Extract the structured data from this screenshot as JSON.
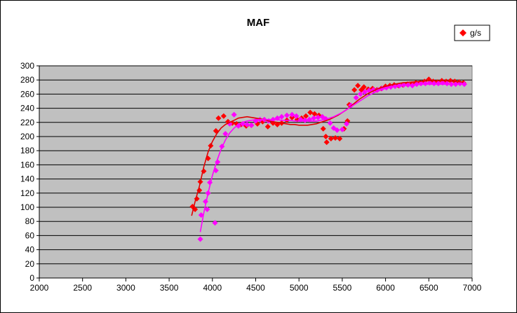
{
  "chart_data": {
    "type": "scatter",
    "title": "MAF",
    "xlabel": "",
    "ylabel": "",
    "xlim": [
      2000,
      7000
    ],
    "ylim": [
      0,
      300
    ],
    "x_ticks": [
      2000,
      2500,
      3000,
      3500,
      4000,
      4500,
      5000,
      5500,
      6000,
      6500,
      7000
    ],
    "y_ticks": [
      0,
      20,
      40,
      60,
      80,
      100,
      120,
      140,
      160,
      180,
      200,
      220,
      240,
      260,
      280,
      300
    ],
    "grid": "horizontal",
    "legend": "top-right",
    "colors": {
      "plot_background": "#c0c0c0",
      "series1": "#ff0000",
      "series2": "#ff00ff",
      "trend1": "#e00000",
      "trend2": "#ff00ff"
    },
    "series": [
      {
        "name": "g/s",
        "color": "#ff0000",
        "marker": "diamond",
        "points": [
          [
            3770,
            101
          ],
          [
            3800,
            97
          ],
          [
            3820,
            112
          ],
          [
            3850,
            124
          ],
          [
            3860,
            136
          ],
          [
            3900,
            151
          ],
          [
            3950,
            169
          ],
          [
            3980,
            187
          ],
          [
            4040,
            208
          ],
          [
            4070,
            226
          ],
          [
            4130,
            229
          ],
          [
            4180,
            221
          ],
          [
            4230,
            219
          ],
          [
            4280,
            218
          ],
          [
            4330,
            217
          ],
          [
            4390,
            215
          ],
          [
            4450,
            216
          ],
          [
            4520,
            218
          ],
          [
            4580,
            221
          ],
          [
            4640,
            214
          ],
          [
            4700,
            219
          ],
          [
            4750,
            217
          ],
          [
            4800,
            219
          ],
          [
            4860,
            223
          ],
          [
            4920,
            227
          ],
          [
            4980,
            224
          ],
          [
            5030,
            226
          ],
          [
            5080,
            229
          ],
          [
            5130,
            234
          ],
          [
            5180,
            232
          ],
          [
            5230,
            230
          ],
          [
            5280,
            211
          ],
          [
            5310,
            200
          ],
          [
            5320,
            192
          ],
          [
            5370,
            197
          ],
          [
            5420,
            198
          ],
          [
            5470,
            197
          ],
          [
            5520,
            211
          ],
          [
            5560,
            222
          ],
          [
            5580,
            245
          ],
          [
            5640,
            266
          ],
          [
            5680,
            272
          ],
          [
            5720,
            266
          ],
          [
            5750,
            270
          ],
          [
            5800,
            267
          ],
          [
            5850,
            268
          ],
          [
            5900,
            266
          ],
          [
            5950,
            268
          ],
          [
            6000,
            271
          ],
          [
            6050,
            272
          ],
          [
            6100,
            273
          ],
          [
            6150,
            272
          ],
          [
            6200,
            273
          ],
          [
            6250,
            274
          ],
          [
            6300,
            274
          ],
          [
            6350,
            276
          ],
          [
            6400,
            276
          ],
          [
            6450,
            278
          ],
          [
            6500,
            281
          ],
          [
            6550,
            278
          ],
          [
            6600,
            277
          ],
          [
            6650,
            279
          ],
          [
            6700,
            278
          ],
          [
            6750,
            279
          ],
          [
            6800,
            278
          ],
          [
            6850,
            277
          ],
          [
            6900,
            276
          ]
        ]
      },
      {
        "name": "",
        "color": "#ff00ff",
        "marker": "diamond",
        "points": [
          [
            3860,
            55
          ],
          [
            3870,
            89
          ],
          [
            3920,
            108
          ],
          [
            3940,
            97
          ],
          [
            3950,
            120
          ],
          [
            3970,
            135
          ],
          [
            4030,
            78
          ],
          [
            4040,
            152
          ],
          [
            4060,
            164
          ],
          [
            4110,
            186
          ],
          [
            4150,
            204
          ],
          [
            4200,
            218
          ],
          [
            4250,
            231
          ],
          [
            4300,
            215
          ],
          [
            4350,
            218
          ],
          [
            4400,
            217
          ],
          [
            4450,
            216
          ],
          [
            4500,
            222
          ],
          [
            4550,
            224
          ],
          [
            4600,
            224
          ],
          [
            4650,
            222
          ],
          [
            4700,
            224
          ],
          [
            4750,
            226
          ],
          [
            4800,
            228
          ],
          [
            4860,
            230
          ],
          [
            4920,
            231
          ],
          [
            4970,
            229
          ],
          [
            5020,
            224
          ],
          [
            5070,
            223
          ],
          [
            5120,
            224
          ],
          [
            5170,
            226
          ],
          [
            5220,
            227
          ],
          [
            5270,
            228
          ],
          [
            5310,
            225
          ],
          [
            5360,
            219
          ],
          [
            5400,
            212
          ],
          [
            5440,
            209
          ],
          [
            5500,
            210
          ],
          [
            5550,
            218
          ],
          [
            5600,
            244
          ],
          [
            5660,
            255
          ],
          [
            5710,
            260
          ],
          [
            5760,
            263
          ],
          [
            5810,
            265
          ],
          [
            5860,
            266
          ],
          [
            5910,
            266
          ],
          [
            5960,
            268
          ],
          [
            6010,
            269
          ],
          [
            6060,
            270
          ],
          [
            6110,
            271
          ],
          [
            6160,
            272
          ],
          [
            6210,
            273
          ],
          [
            6260,
            273
          ],
          [
            6310,
            272
          ],
          [
            6360,
            274
          ],
          [
            6410,
            275
          ],
          [
            6460,
            275
          ],
          [
            6510,
            276
          ],
          [
            6560,
            275
          ],
          [
            6610,
            275
          ],
          [
            6660,
            276
          ],
          [
            6710,
            275
          ],
          [
            6760,
            274
          ],
          [
            6810,
            274
          ],
          [
            6860,
            275
          ],
          [
            6910,
            274
          ]
        ]
      }
    ],
    "trendlines": [
      {
        "color": "#e00000",
        "points": [
          [
            3760,
            88
          ],
          [
            3800,
            108
          ],
          [
            3850,
            130
          ],
          [
            3900,
            157
          ],
          [
            3950,
            178
          ],
          [
            4000,
            193
          ],
          [
            4050,
            204
          ],
          [
            4100,
            212
          ],
          [
            4150,
            217
          ],
          [
            4200,
            220
          ],
          [
            4250,
            223
          ],
          [
            4300,
            226
          ],
          [
            4350,
            227
          ],
          [
            4400,
            228
          ],
          [
            4450,
            227
          ],
          [
            4500,
            226
          ],
          [
            4550,
            225
          ],
          [
            4600,
            224
          ],
          [
            4650,
            222
          ],
          [
            4700,
            221
          ],
          [
            4750,
            220
          ],
          [
            4800,
            219
          ],
          [
            4850,
            218
          ],
          [
            4900,
            217
          ],
          [
            4950,
            217
          ],
          [
            5000,
            216
          ],
          [
            5050,
            216
          ],
          [
            5100,
            216
          ],
          [
            5150,
            217
          ],
          [
            5200,
            218
          ],
          [
            5250,
            220
          ],
          [
            5300,
            222
          ],
          [
            5350,
            224
          ],
          [
            5400,
            227
          ],
          [
            5450,
            230
          ],
          [
            5500,
            234
          ],
          [
            5550,
            238
          ],
          [
            5600,
            243
          ],
          [
            5650,
            248
          ],
          [
            5700,
            253
          ],
          [
            5750,
            257
          ],
          [
            5800,
            261
          ],
          [
            5850,
            264
          ],
          [
            5900,
            267
          ],
          [
            5950,
            269
          ],
          [
            6000,
            271
          ],
          [
            6100,
            274
          ],
          [
            6200,
            276
          ],
          [
            6300,
            277
          ],
          [
            6400,
            278
          ],
          [
            6500,
            279
          ],
          [
            6600,
            279
          ],
          [
            6700,
            279
          ],
          [
            6800,
            278
          ],
          [
            6900,
            277
          ]
        ]
      },
      {
        "color": "#ff00ff",
        "points": [
          [
            3860,
            65
          ],
          [
            3900,
            92
          ],
          [
            3950,
            120
          ],
          [
            4000,
            145
          ],
          [
            4050,
            165
          ],
          [
            4100,
            182
          ],
          [
            4150,
            195
          ],
          [
            4200,
            205
          ],
          [
            4250,
            212
          ],
          [
            4300,
            217
          ],
          [
            4350,
            220
          ],
          [
            4400,
            222
          ],
          [
            4450,
            223
          ],
          [
            4500,
            224
          ],
          [
            4550,
            224
          ],
          [
            4600,
            224
          ],
          [
            4650,
            224
          ],
          [
            4700,
            224
          ],
          [
            4750,
            224
          ],
          [
            4800,
            223
          ],
          [
            4850,
            223
          ],
          [
            4900,
            223
          ],
          [
            4950,
            222
          ],
          [
            5000,
            222
          ],
          [
            5050,
            222
          ],
          [
            5100,
            222
          ],
          [
            5150,
            222
          ],
          [
            5200,
            222
          ],
          [
            5250,
            223
          ],
          [
            5300,
            224
          ],
          [
            5350,
            226
          ],
          [
            5400,
            228
          ],
          [
            5450,
            231
          ],
          [
            5500,
            234
          ],
          [
            5550,
            238
          ],
          [
            5600,
            242
          ],
          [
            5650,
            246
          ],
          [
            5700,
            250
          ],
          [
            5750,
            254
          ],
          [
            5800,
            258
          ],
          [
            5850,
            261
          ],
          [
            5900,
            264
          ],
          [
            5950,
            266
          ],
          [
            6000,
            268
          ],
          [
            6100,
            271
          ],
          [
            6200,
            272
          ],
          [
            6300,
            273
          ],
          [
            6400,
            274
          ],
          [
            6500,
            274
          ],
          [
            6600,
            274
          ],
          [
            6700,
            274
          ],
          [
            6800,
            274
          ],
          [
            6900,
            274
          ]
        ]
      }
    ]
  }
}
